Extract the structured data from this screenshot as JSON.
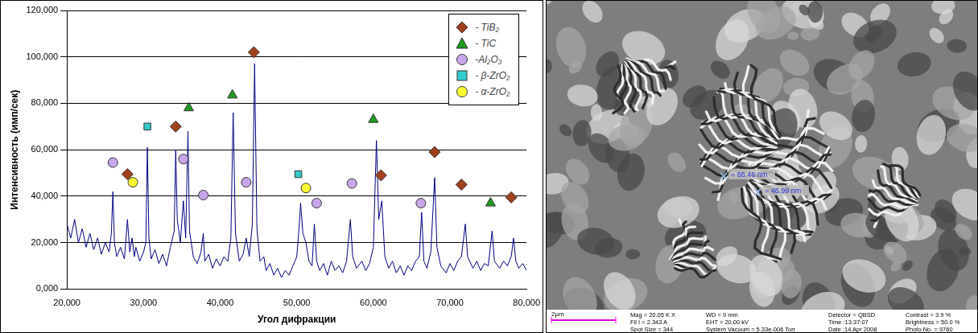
{
  "chart_data": {
    "type": "scatter",
    "x_label": "Угол дифракции",
    "y_label": "Интенсивность (имп/сек)",
    "xlim": [
      20,
      80
    ],
    "xticks": [
      {
        "value": 20,
        "label": "20,000"
      },
      {
        "value": 30,
        "label": "30,000"
      },
      {
        "value": 40,
        "label": "40,000"
      },
      {
        "value": 50,
        "label": "50,000"
      },
      {
        "value": 60,
        "label": "60,000"
      },
      {
        "value": 70,
        "label": "70,000"
      },
      {
        "value": 80,
        "label": "80,000"
      }
    ],
    "ylim": [
      0,
      120
    ],
    "yticks": [
      {
        "value": 0,
        "label": "0,000"
      },
      {
        "value": 20,
        "label": "20,000"
      },
      {
        "value": 40,
        "label": "40,000"
      },
      {
        "value": 60,
        "label": "60,000"
      },
      {
        "value": 80,
        "label": "80,000"
      },
      {
        "value": 100,
        "label": "100,000"
      },
      {
        "value": 120,
        "label": "120,000"
      }
    ],
    "grid": "y",
    "legend": "upper right",
    "series": [
      {
        "type": "line",
        "color": "#000080",
        "line_style": "solid",
        "x": [
          20,
          20.5,
          21,
          21.5,
          22,
          22.5,
          23,
          23.5,
          24,
          24.5,
          25,
          25.5,
          25.8,
          26,
          26.2,
          26.5,
          27,
          27.5,
          27.9,
          28.2,
          28.5,
          28.8,
          29,
          29.5,
          30,
          30.3,
          30.5,
          30.7,
          31,
          31.5,
          32,
          32.5,
          33,
          33.5,
          34,
          34.2,
          34.4,
          34.8,
          35.2,
          35.5,
          35.8,
          36,
          36.5,
          37,
          37.5,
          37.8,
          38,
          38.5,
          39,
          39.5,
          40,
          40.5,
          41,
          41.4,
          41.7,
          42,
          42.5,
          43,
          43.4,
          43.8,
          44.2,
          44.5,
          44.8,
          45.2,
          45.7,
          46,
          46.5,
          47,
          47.5,
          48,
          48.5,
          49,
          49.5,
          50,
          50.3,
          50.5,
          50.8,
          51.2,
          51.6,
          52,
          52.3,
          52.6,
          53,
          53.5,
          54,
          54.5,
          55,
          55.5,
          56,
          56.5,
          57,
          57.3,
          57.8,
          58.5,
          59,
          59.5,
          60,
          60.4,
          60.7,
          61.1,
          61.5,
          62,
          62.5,
          63,
          63.5,
          64,
          64.5,
          65,
          65.5,
          66,
          66.3,
          66.6,
          67,
          67.5,
          68,
          68.3,
          68.8,
          69.5,
          70,
          70.5,
          71,
          71.5,
          72,
          72.3,
          73,
          73.5,
          74,
          74.5,
          75,
          75.5,
          75.8,
          76.5,
          77,
          77.5,
          78,
          78.3,
          78.6,
          79,
          79.5,
          80
        ],
        "values": [
          28,
          22,
          30,
          20,
          26,
          18,
          24,
          17,
          22,
          15,
          20,
          16,
          24,
          42,
          20,
          14,
          18,
          13,
          30,
          16,
          22,
          14,
          18,
          12,
          16,
          20,
          61,
          22,
          13,
          17,
          11,
          15,
          10,
          18,
          25,
          60,
          30,
          20,
          38,
          22,
          68,
          25,
          14,
          11,
          16,
          24,
          12,
          15,
          9,
          13,
          10,
          14,
          12,
          22,
          76,
          24,
          12,
          15,
          22,
          14,
          28,
          97,
          26,
          12,
          14,
          8,
          11,
          6,
          9,
          5,
          8,
          6,
          10,
          14,
          26,
          37,
          24,
          20,
          12,
          10,
          28,
          12,
          8,
          11,
          6,
          12,
          8,
          10,
          7,
          12,
          30,
          14,
          9,
          12,
          8,
          11,
          18,
          64,
          30,
          38,
          14,
          9,
          12,
          7,
          10,
          6,
          10,
          8,
          12,
          14,
          33,
          12,
          9,
          16,
          48,
          18,
          10,
          7,
          11,
          8,
          12,
          14,
          28,
          14,
          9,
          12,
          8,
          11,
          10,
          25,
          12,
          9,
          12,
          10,
          14,
          22,
          12,
          9,
          11,
          8
        ]
      },
      {
        "name": "- TiB₂",
        "type": "scatter",
        "marker": "diamond",
        "color": "#a0401c",
        "x": [
          27.9,
          34.2,
          44.4,
          61,
          68,
          71.5,
          78
        ],
        "values": [
          49.5,
          70,
          102,
          49,
          59,
          45,
          39.5
        ]
      },
      {
        "name": "- TiC",
        "type": "scatter",
        "marker": "triangle",
        "color": "#1e9a1e",
        "x": [
          35.9,
          41.6,
          60,
          75.3
        ],
        "values": [
          78,
          83.5,
          73,
          37
        ]
      },
      {
        "name": "-Al₂O₃",
        "type": "scatter",
        "marker": "circle",
        "color": "#c8a6ea",
        "x": [
          26,
          35.2,
          37.8,
          43.4,
          52.6,
          57.2,
          66.2
        ],
        "values": [
          54.5,
          56,
          40.5,
          46,
          37,
          45.5,
          37
        ]
      },
      {
        "name": "- β-ZrO₂",
        "type": "scatter",
        "marker": "square",
        "color": "#33cccc",
        "x": [
          30.5,
          50.2
        ],
        "values": [
          70,
          49.5
        ]
      },
      {
        "name": "- α-ZrO₂",
        "type": "scatter",
        "marker": "circle",
        "color": "#ffff33",
        "x": [
          28.6,
          51.2
        ],
        "values": [
          46,
          43.5
        ]
      }
    ]
  },
  "micrograph": {
    "measurements": [
      "= 66.46 nm",
      "= 46.99 nm"
    ],
    "scale_bar": "2µm",
    "info": [
      [
        "Mag = 20.05 K X",
        "Fil I = 2.343 A",
        "Spot Size = 344"
      ],
      [
        "WD = 9 mm",
        "EHT = 20.00 kV",
        "System Vacuum = 5.33e-006 Torr"
      ],
      [
        "Detector = QBSD",
        "Time :13:37:07",
        "Date :14 Apr 2008"
      ],
      [
        "Contrast = 3.9 %",
        "Brightness = 50.0 %",
        "Photo No. = 9760"
      ]
    ]
  }
}
